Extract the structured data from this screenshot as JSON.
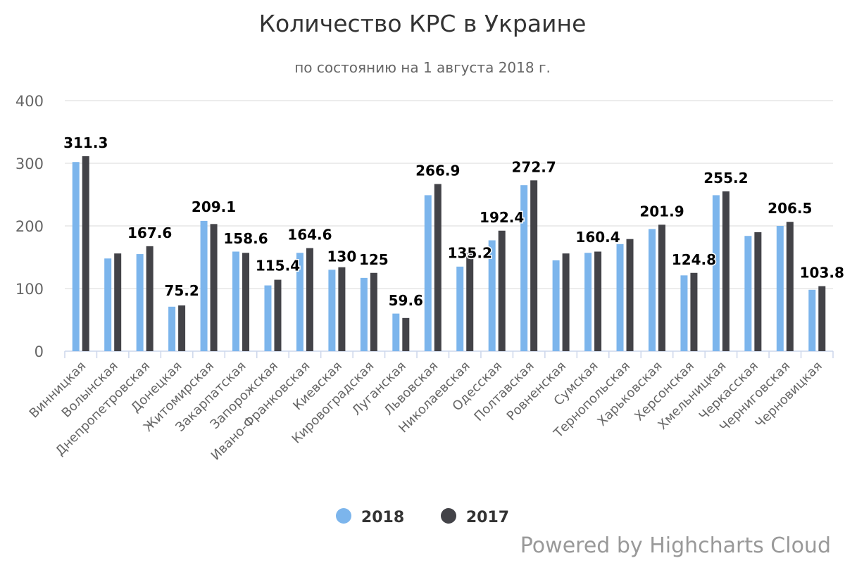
{
  "chart_data": {
    "type": "bar",
    "title": "Количество КРС в Украине",
    "subtitle": "по состоянию на 1 августа 2018 г.",
    "xlabel": "",
    "ylabel": "",
    "ylim": [
      0,
      400
    ],
    "yticks": [
      0,
      100,
      200,
      300,
      400
    ],
    "grid": true,
    "legend_position": "bottom-center",
    "categories": [
      "Винницкая",
      "Волынская",
      "Днепропетровская",
      "Донецкая",
      "Житомирская",
      "Закарпатская",
      "Запорожская",
      "Ивано-Франковская",
      "Киевская",
      "Кировоградская",
      "Луганская",
      "Львовская",
      "Николаевская",
      "Одесская",
      "Полтавская",
      "Ровненская",
      "Сумская",
      "Тернопольская",
      "Харьковская",
      "Херсонская",
      "Хмельницкая",
      "Черкасская",
      "Черниговская",
      "Черновицкая"
    ],
    "series": [
      {
        "name": "2018",
        "color": "#7cb5ec",
        "values": [
          302,
          148,
          155,
          71,
          208,
          159,
          105,
          157,
          130,
          117,
          60,
          249,
          135,
          177,
          265,
          145,
          157,
          171,
          195,
          121,
          249,
          184,
          200,
          98
        ]
      },
      {
        "name": "2017",
        "color": "#434348",
        "values": [
          311.3,
          156,
          167.6,
          73,
          203,
          157,
          114,
          164.6,
          134,
          125,
          53,
          266.9,
          157,
          192.4,
          272.7,
          156,
          159,
          179,
          201.9,
          125,
          255.2,
          190,
          206.5,
          103.8
        ]
      }
    ],
    "data_labels": [
      {
        "category": "Винницкая",
        "text": "311.3",
        "value": 311.3
      },
      {
        "category": "Днепропетровская",
        "text": "167.6",
        "value": 167.6
      },
      {
        "category": "Донецкая",
        "text": "75.2",
        "value": 75.2
      },
      {
        "category": "Житомирская",
        "text": "209.1",
        "value": 209.1
      },
      {
        "category": "Закарпатская",
        "text": "158.6",
        "value": 158.6
      },
      {
        "category": "Запорожская",
        "text": "115.4",
        "value": 115.4
      },
      {
        "category": "Ивано-Франковская",
        "text": "164.6",
        "value": 164.6
      },
      {
        "category": "Киевская",
        "text": "130",
        "value": 130
      },
      {
        "category": "Кировоградская",
        "text": "125",
        "value": 125
      },
      {
        "category": "Луганская",
        "text": "59.6",
        "value": 59.6
      },
      {
        "category": "Львовская",
        "text": "266.9",
        "value": 266.9
      },
      {
        "category": "Николаевская",
        "text": "135.2",
        "value": 135.2
      },
      {
        "category": "Одесская",
        "text": "192.4",
        "value": 192.4
      },
      {
        "category": "Полтавская",
        "text": "272.7",
        "value": 272.7
      },
      {
        "category": "Сумская",
        "text": "160.4",
        "value": 160.4
      },
      {
        "category": "Харьковская",
        "text": "201.9",
        "value": 201.9
      },
      {
        "category": "Херсонская",
        "text": "124.8",
        "value": 124.8
      },
      {
        "category": "Хмельницкая",
        "text": "255.2",
        "value": 255.2
      },
      {
        "category": "Черниговская",
        "text": "206.5",
        "value": 206.5
      },
      {
        "category": "Черновицкая",
        "text": "103.8",
        "value": 103.8
      }
    ]
  },
  "legend": {
    "items": [
      {
        "label": "2018",
        "color": "#7cb5ec"
      },
      {
        "label": "2017",
        "color": "#434348"
      }
    ]
  },
  "credits": "Powered by Highcharts Cloud"
}
